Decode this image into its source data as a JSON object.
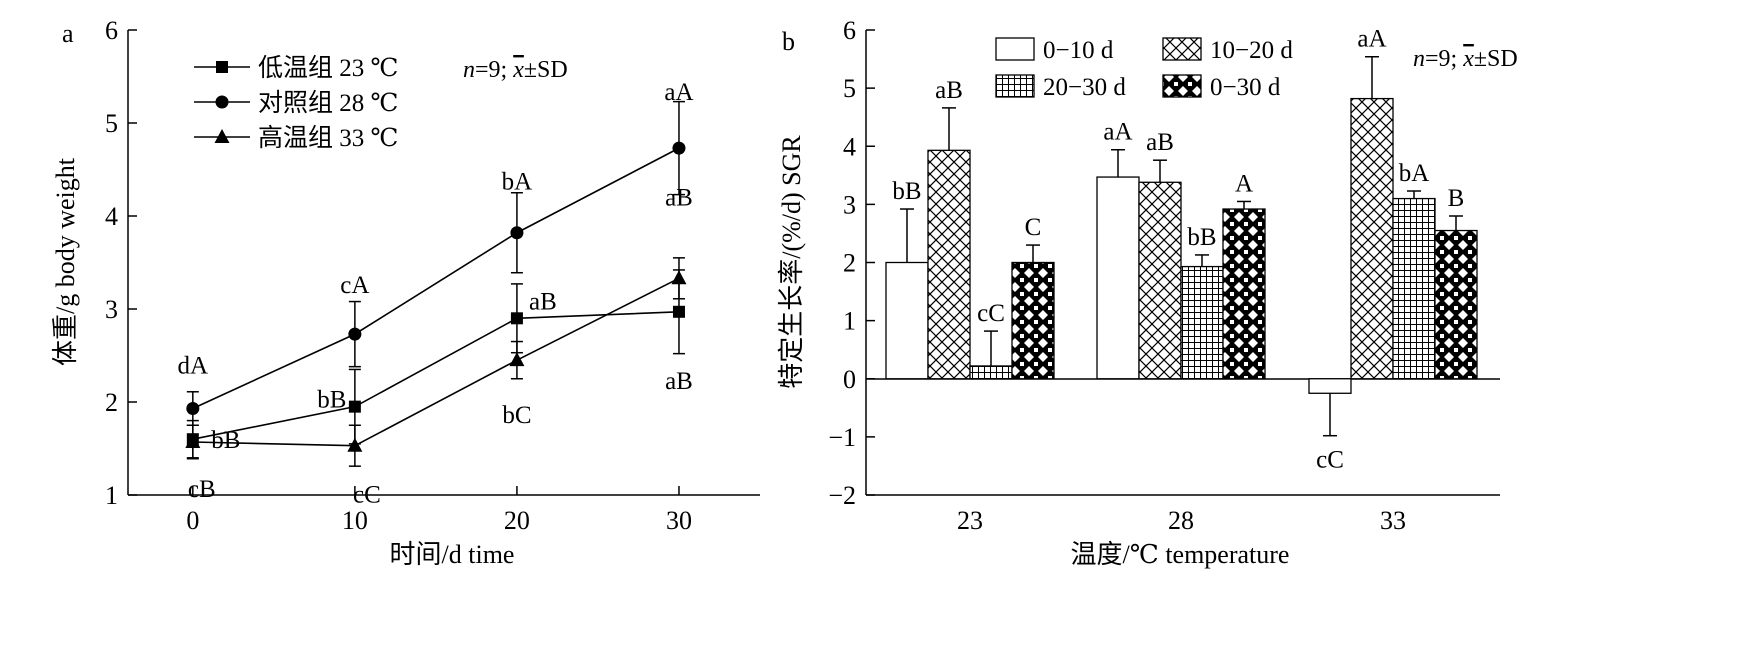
{
  "chart_data": [
    {
      "panel_label": "a",
      "type": "line",
      "xlabel": "时间/d time",
      "ylabel": "体重/g body weight",
      "annotation": "n=9; x̄±SD",
      "xlim": [
        -4,
        35
      ],
      "ylim": [
        1,
        6
      ],
      "xticks": [
        0,
        10,
        20,
        30
      ],
      "yticks": [
        1,
        2,
        3,
        4,
        5,
        6
      ],
      "x": [
        0,
        10,
        20,
        30
      ],
      "legend_position": "top-left",
      "series": [
        {
          "name": "低温组 23 ℃",
          "marker": "square",
          "values": [
            1.6,
            1.95,
            2.9,
            2.97
          ],
          "errors": [
            0.2,
            0.4,
            0.37,
            0.45
          ],
          "labels": [
            "bB",
            "bB",
            "aB",
            "aB"
          ]
        },
        {
          "name": "对照组 28 ℃",
          "marker": "circle",
          "values": [
            1.93,
            2.73,
            3.82,
            4.73
          ],
          "errors": [
            0.18,
            0.35,
            0.43,
            0.5
          ],
          "labels": [
            "dA",
            "cA",
            "bA",
            "aA"
          ]
        },
        {
          "name": "高温组 33 ℃",
          "marker": "triangle",
          "values": [
            1.57,
            1.53,
            2.45,
            3.33
          ],
          "errors": [
            0.18,
            0.22,
            0.2,
            0.22
          ],
          "labels": [
            "cB",
            "cC",
            "bC",
            "aB"
          ]
        }
      ]
    },
    {
      "panel_label": "b",
      "type": "bar",
      "xlabel": "温度/℃ temperature",
      "ylabel": "特定生长率/(%/d) SGR",
      "annotation": "n=9; x̄±SD",
      "ylim": [
        -2,
        6
      ],
      "yticks": [
        -2,
        -1,
        0,
        1,
        2,
        3,
        4,
        5,
        6
      ],
      "categories": [
        "23",
        "28",
        "33"
      ],
      "legend_position": "top",
      "series": [
        {
          "name": "0−10 d",
          "pattern": "blank",
          "values": [
            2.0,
            3.47,
            -0.25
          ],
          "errors": [
            0.92,
            0.47,
            0.73
          ],
          "labels": [
            "bB",
            "aA",
            "cC"
          ]
        },
        {
          "name": "10−20 d",
          "pattern": "crosshatch",
          "values": [
            3.93,
            3.38,
            4.82
          ],
          "errors": [
            0.73,
            0.38,
            0.72
          ],
          "labels": [
            "aB",
            "aB",
            "aA"
          ]
        },
        {
          "name": "20−30 d",
          "pattern": "grid",
          "values": [
            0.22,
            1.93,
            3.1
          ],
          "errors": [
            0.6,
            0.2,
            0.13
          ],
          "labels": [
            "cC",
            "bB",
            "bA"
          ]
        },
        {
          "name": "0−30 d",
          "pattern": "checker",
          "values": [
            2.0,
            2.92,
            2.55
          ],
          "errors": [
            0.3,
            0.13,
            0.25
          ],
          "labels": [
            "C",
            "A",
            "B"
          ]
        }
      ]
    }
  ]
}
